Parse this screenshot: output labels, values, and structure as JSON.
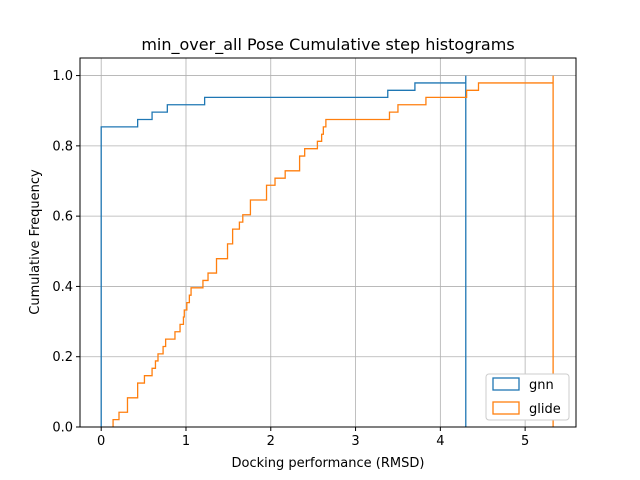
{
  "chart_data": {
    "type": "line",
    "subtype": "cumulative-step-histogram",
    "title": "min_over_all Pose Cumulative step histograms",
    "xlabel": "Docking performance (RMSD)",
    "ylabel": "Cumulative Frequency",
    "xlim": [
      -0.25,
      5.6
    ],
    "ylim": [
      0,
      1.05
    ],
    "xticks": [
      0,
      1,
      2,
      3,
      4,
      5
    ],
    "xtick_labels": [
      "0",
      "1",
      "2",
      "3",
      "4",
      "5"
    ],
    "yticks": [
      0.0,
      0.2,
      0.4,
      0.6,
      0.8,
      1.0
    ],
    "ytick_labels": [
      "0.0",
      "0.2",
      "0.4",
      "0.6",
      "0.8",
      "1.0"
    ],
    "grid": true,
    "legend_position": "lower-right",
    "series": [
      {
        "name": "gnn",
        "color": "#1f77b4",
        "steps": [
          [
            0.0,
            0.854
          ],
          [
            0.43,
            0.875
          ],
          [
            0.6,
            0.896
          ],
          [
            0.78,
            0.917
          ],
          [
            1.22,
            0.938
          ],
          [
            3.38,
            0.958
          ],
          [
            3.7,
            0.979
          ],
          [
            4.3,
            1.0
          ]
        ],
        "x_end": 4.3
      },
      {
        "name": "glide",
        "color": "#ff7f0e",
        "steps": [
          [
            0.14,
            0.021
          ],
          [
            0.21,
            0.042
          ],
          [
            0.31,
            0.083
          ],
          [
            0.43,
            0.125
          ],
          [
            0.51,
            0.146
          ],
          [
            0.6,
            0.167
          ],
          [
            0.64,
            0.188
          ],
          [
            0.67,
            0.208
          ],
          [
            0.73,
            0.229
          ],
          [
            0.76,
            0.25
          ],
          [
            0.87,
            0.271
          ],
          [
            0.93,
            0.292
          ],
          [
            0.97,
            0.313
          ],
          [
            0.98,
            0.333
          ],
          [
            1.01,
            0.354
          ],
          [
            1.04,
            0.375
          ],
          [
            1.06,
            0.396
          ],
          [
            1.2,
            0.417
          ],
          [
            1.26,
            0.438
          ],
          [
            1.36,
            0.479
          ],
          [
            1.49,
            0.521
          ],
          [
            1.55,
            0.563
          ],
          [
            1.63,
            0.583
          ],
          [
            1.67,
            0.604
          ],
          [
            1.76,
            0.646
          ],
          [
            1.95,
            0.688
          ],
          [
            2.05,
            0.708
          ],
          [
            2.17,
            0.729
          ],
          [
            2.34,
            0.771
          ],
          [
            2.4,
            0.792
          ],
          [
            2.55,
            0.813
          ],
          [
            2.6,
            0.833
          ],
          [
            2.62,
            0.854
          ],
          [
            2.65,
            0.875
          ],
          [
            3.4,
            0.896
          ],
          [
            3.5,
            0.917
          ],
          [
            3.83,
            0.938
          ],
          [
            4.31,
            0.958
          ],
          [
            4.45,
            0.979
          ],
          [
            5.33,
            1.0
          ]
        ],
        "x_end": 5.33
      }
    ]
  }
}
